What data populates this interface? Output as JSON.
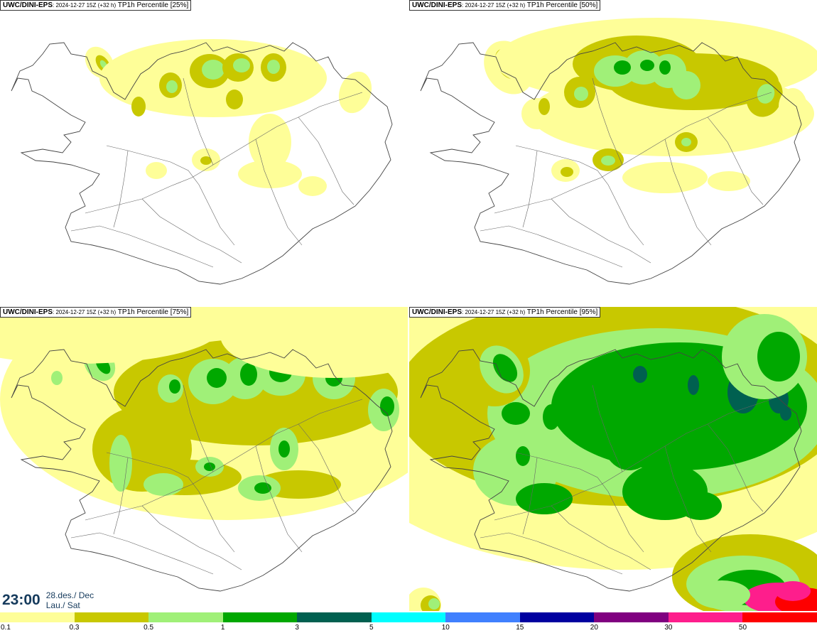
{
  "panels": [
    {
      "model": "UWC/DINI-EPS",
      "run": ": 2024-12-27 15Z (+32 h)",
      "field": " TP1h Percentile [25%]",
      "level": 0
    },
    {
      "model": "UWC/DINI-EPS",
      "run": ": 2024-12-27 15Z (+32 h)",
      "field": " TP1h Percentile [50%]",
      "level": 1
    },
    {
      "model": "UWC/DINI-EPS",
      "run": ": 2024-12-27 15Z (+32 h)",
      "field": " TP1h Percentile [75%]",
      "level": 2
    },
    {
      "model": "UWC/DINI-EPS",
      "run": ": 2024-12-27 15Z (+32 h)",
      "field": " TP1h Percentile [95%]",
      "level": 3
    }
  ],
  "time": {
    "value": "23:00",
    "date_line1": "28.des./ Dec",
    "date_line2": "Lau./ Sat"
  },
  "colorbar": {
    "colors": [
      "#fefe98",
      "#c8c800",
      "#a0f078",
      "#00a800",
      "#006050",
      "#00fefe",
      "#4080fe",
      "#0000a0",
      "#800080",
      "#fe1e8c",
      "#fe0000"
    ],
    "labels": [
      "0.1",
      "0.3",
      "0.5",
      "1",
      "3",
      "5",
      "10",
      "15",
      "20",
      "30",
      "50"
    ]
  },
  "map_colors": {
    "coast": "#444444",
    "roads": "#666666"
  }
}
